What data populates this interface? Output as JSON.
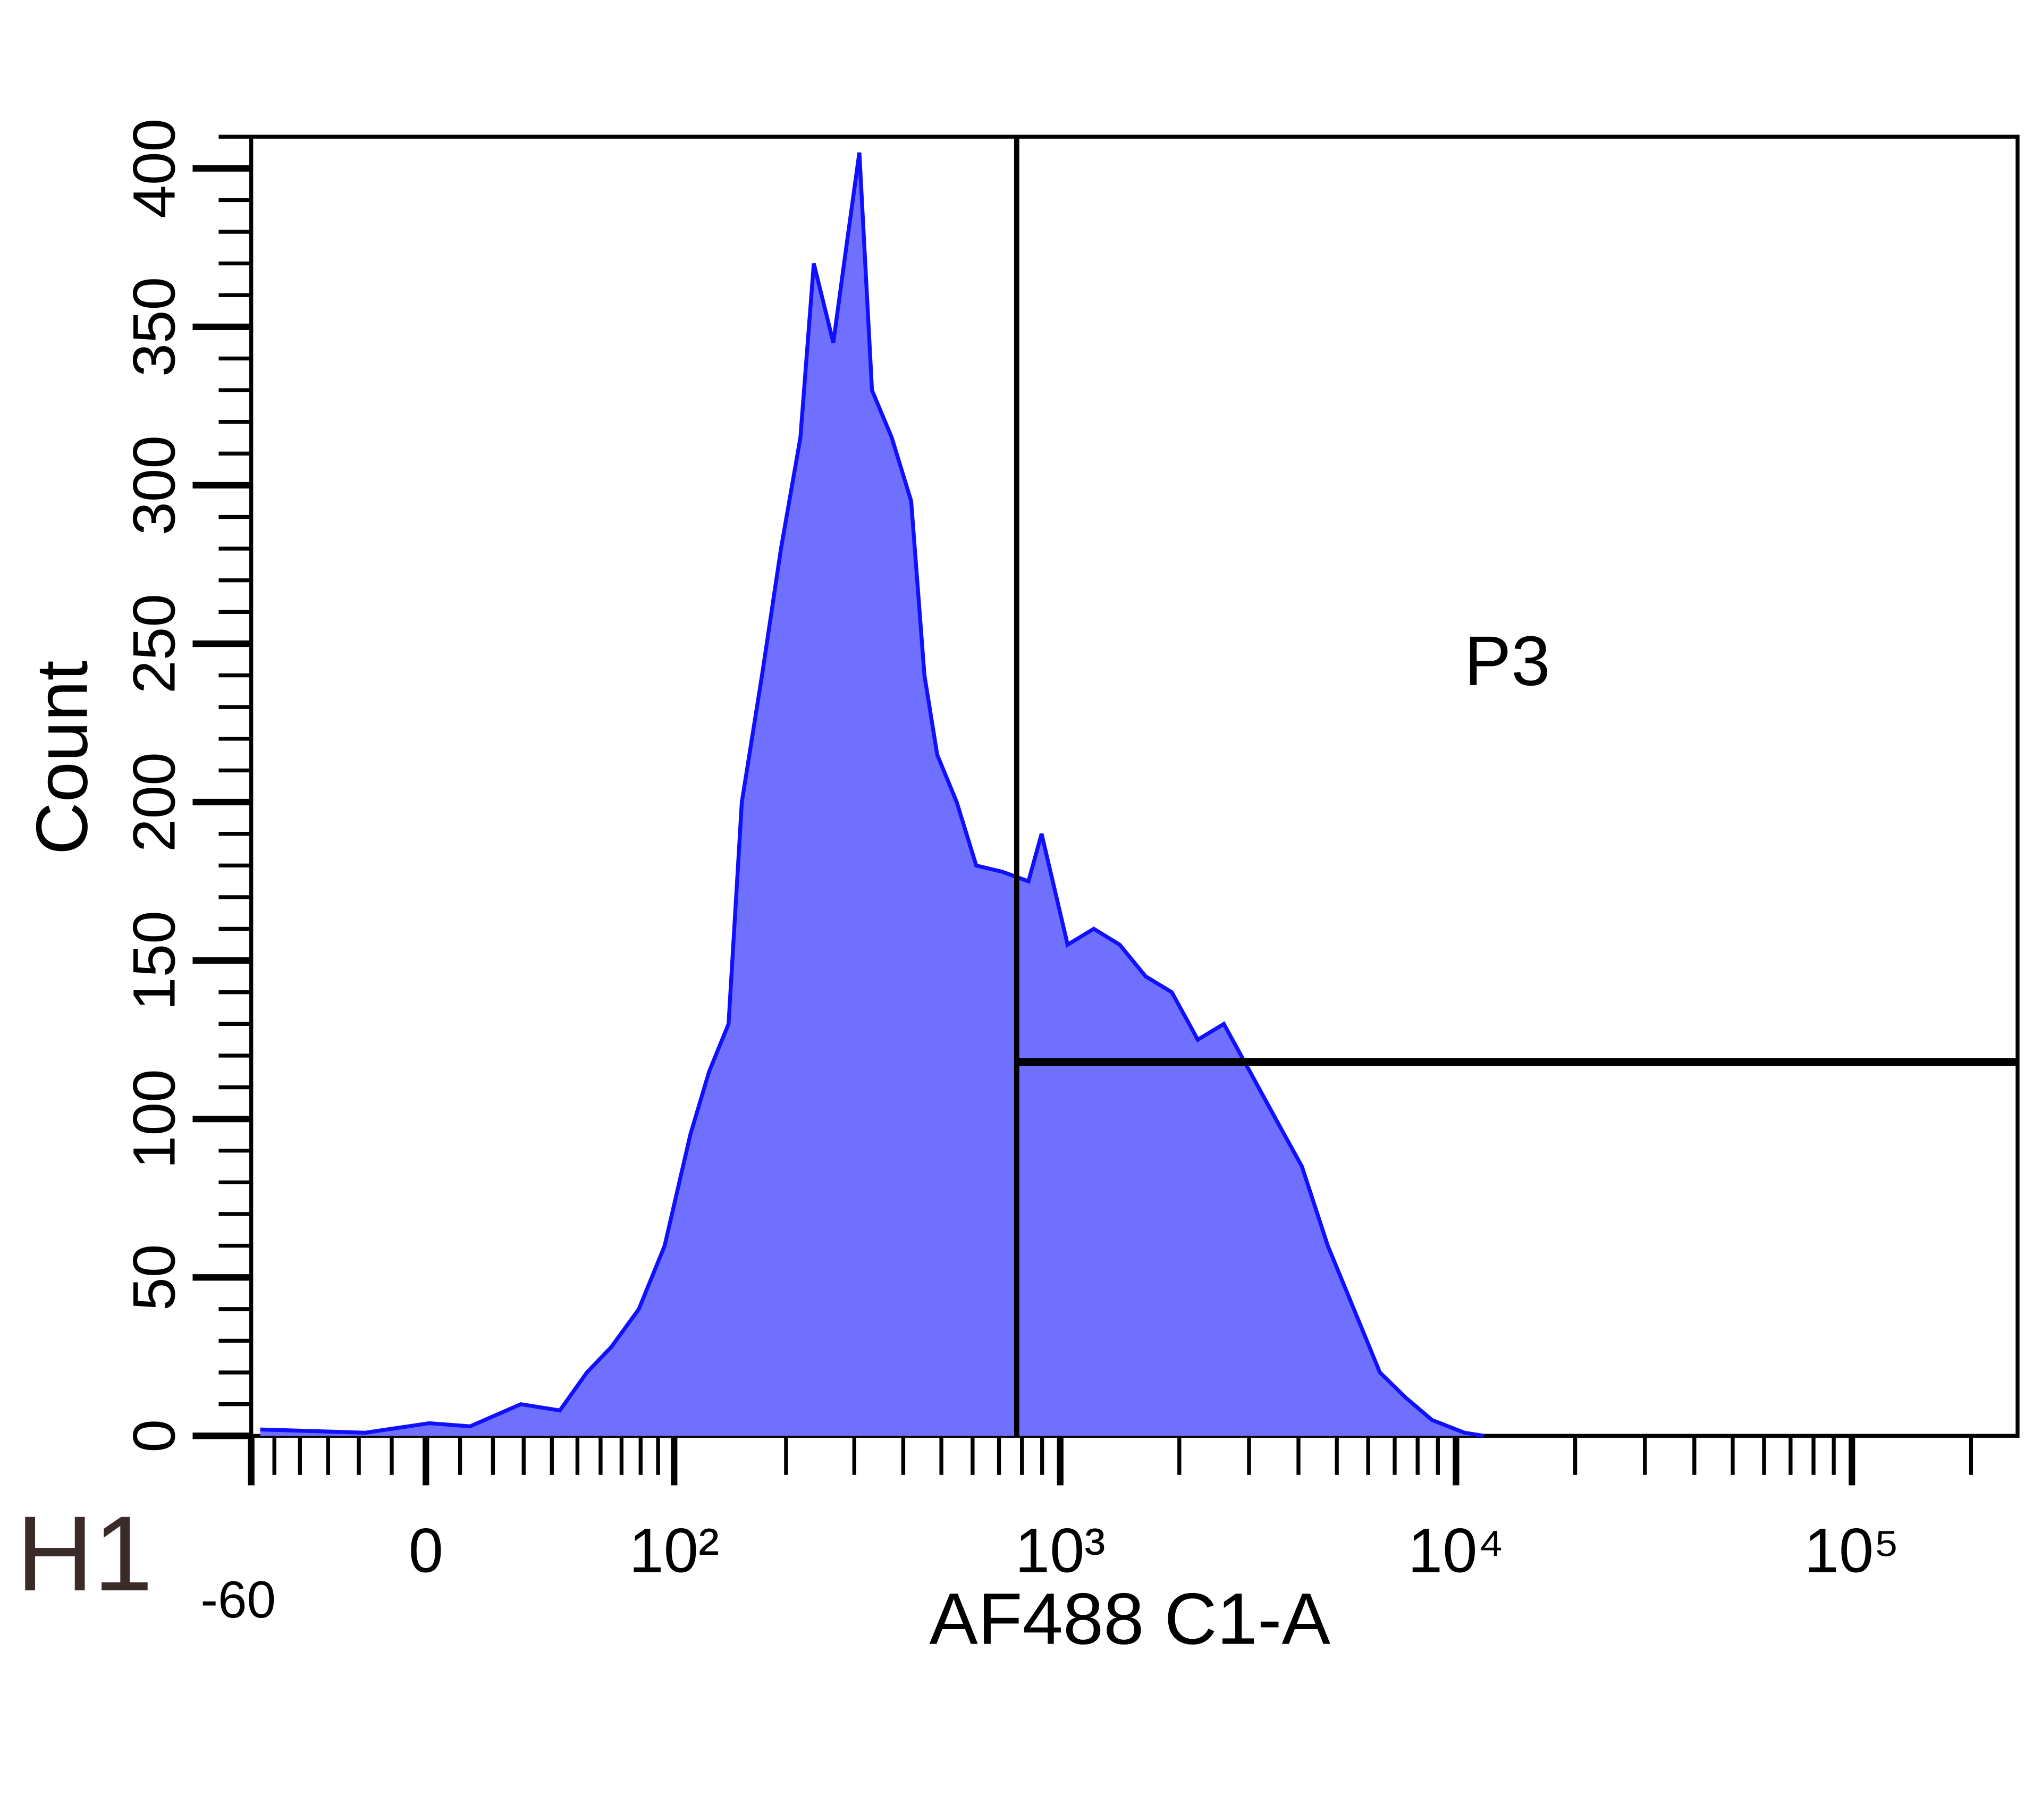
{
  "chart_data": {
    "type": "area",
    "plot_label": "H1",
    "xlabel": "AF488 C1-A",
    "ylabel": "Count",
    "xscale": "biexponential",
    "xlim": [
      -60,
      262144
    ],
    "ylim": [
      0,
      410
    ],
    "xticks": [
      -60,
      0,
      {
        "value": 100,
        "label": "10²"
      },
      {
        "value": 1000,
        "label": "10³"
      },
      {
        "value": 10000,
        "label": "10⁴"
      },
      {
        "value": 100000,
        "label": "10⁵"
      }
    ],
    "x_minor_ticks": [
      -50,
      -40,
      -30,
      -20,
      -10,
      10,
      20,
      30,
      40,
      50,
      60,
      70,
      80,
      90,
      200,
      300,
      400,
      500,
      600,
      700,
      800,
      900,
      2000,
      3000,
      4000,
      5000,
      6000,
      7000,
      8000,
      9000,
      20000,
      30000,
      40000,
      50000,
      60000,
      70000,
      80000,
      90000,
      200000
    ],
    "yticks": [
      0,
      50,
      100,
      150,
      200,
      250,
      300,
      350,
      400
    ],
    "y_minor_ticks": [
      10,
      20,
      30,
      40,
      60,
      70,
      80,
      90,
      110,
      120,
      130,
      140,
      160,
      170,
      180,
      190,
      210,
      220,
      230,
      240,
      260,
      270,
      280,
      290,
      310,
      320,
      330,
      340,
      360,
      370,
      380,
      390,
      410
    ],
    "color": "#7070ff",
    "line_color": "#1010ff",
    "x": [
      -56,
      -18,
      1,
      13,
      29,
      43,
      54,
      65,
      79,
      94,
      111,
      125,
      141,
      153,
      173,
      194,
      218,
      236,
      265,
      286,
      309,
      333,
      374,
      419,
      453,
      488,
      547,
      613,
      714,
      831,
      897,
      1044,
      1216,
      1414,
      1644,
      1914,
      2227,
      2591,
      3015,
      3506,
      4080,
      4746,
      5521,
      6425,
      7472,
      8695,
      10505,
      11760
    ],
    "values": [
      2,
      1,
      4,
      3,
      10,
      8,
      20,
      28,
      40,
      60,
      95,
      115,
      130,
      200,
      240,
      280,
      315,
      370,
      345,
      375,
      405,
      330,
      315,
      295,
      240,
      215,
      200,
      180,
      178,
      175,
      190,
      155,
      160,
      155,
      145,
      140,
      125,
      130,
      115,
      100,
      85,
      60,
      40,
      20,
      12,
      5,
      1,
      0
    ],
    "gate": {
      "label": "P3",
      "x": 776,
      "y": 118
    }
  }
}
